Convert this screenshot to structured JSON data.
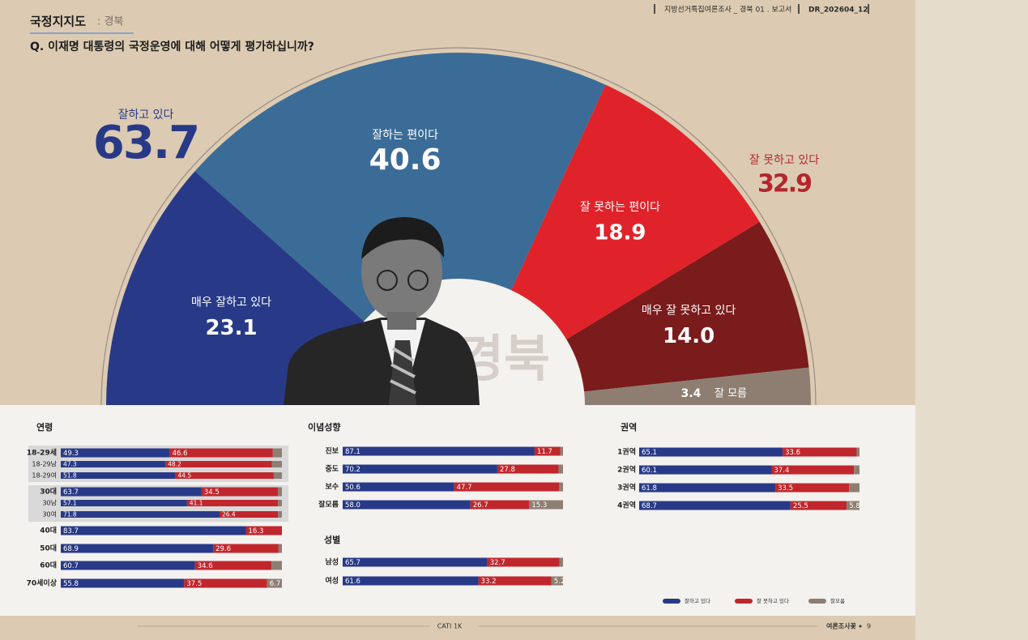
{
  "header": {
    "section_title": "국정지지도",
    "section_sub": ": 경북",
    "question": "Q. 이재명 대통령의 국정운영에 대해 어떻게 평가하십니까?",
    "report": "지방선거특집여론조사 _ 경북 01 . 보고서",
    "doc_id": "DR_202604_12"
  },
  "footer": {
    "method": "CATI 1K",
    "brand": "여론조사꽃",
    "page": "9"
  },
  "chart_data": [
    {
      "type": "pie",
      "categories": [
        "매우 잘하고 있다",
        "잘하는 편이다",
        "잘 못하는 편이다",
        "매우 잘 못하고 있다",
        "잘 모름"
      ],
      "values": [
        23.1,
        40.6,
        18.9,
        14.0,
        3.4
      ],
      "value_labels": [
        "23.1",
        "40.6",
        "18.9",
        "14.0",
        "3.4"
      ],
      "colors": [
        "#283a87",
        "#3b6c97",
        "#e0232a",
        "#7a1b1c",
        "#8e7e72"
      ],
      "groups": [
        {
          "name": "잘하고 있다",
          "value": 63.7,
          "color": "#283a87"
        },
        {
          "name": "잘 못하고 있다",
          "value": 32.9,
          "color": "#b3262d"
        }
      ],
      "watermark": "경북"
    },
    {
      "type": "bar",
      "orientation": "horizontal",
      "stacked": true,
      "title": "연령",
      "categories": [
        "18-29세",
        "18-29남",
        "18-29여",
        "30대",
        "30남",
        "30여",
        "40대",
        "50대",
        "60대",
        "70세이상"
      ],
      "xlim": [
        0,
        100
      ],
      "series": [
        {
          "name": "잘하고 있다",
          "color": "#283a87",
          "values": [
            49.3,
            47.3,
            51.8,
            63.7,
            57.1,
            71.8,
            83.7,
            68.9,
            60.7,
            55.8
          ],
          "value_labels": [
            "49.3",
            "47.3",
            "51.8",
            "63.7",
            "57.1",
            "71.8",
            "83.7",
            "68.9",
            "60.7",
            "55.8"
          ]
        },
        {
          "name": "잘 못하고 있다",
          "color": "#c0272d",
          "values": [
            46.6,
            48.2,
            44.5,
            34.5,
            41.1,
            26.4,
            16.3,
            29.6,
            34.6,
            37.5
          ],
          "value_labels": [
            "46.6",
            "48.2",
            "44.5",
            "34.5",
            "41.1",
            "26.4",
            "16.3",
            "29.6",
            "34.6",
            "37.5"
          ]
        },
        {
          "name": "잘모름",
          "color": "#8e7e72",
          "values": [
            4.1,
            4.5,
            3.7,
            1.8,
            1.8,
            1.8,
            0,
            1.5,
            4.7,
            6.7
          ],
          "value_labels": [
            null,
            null,
            null,
            null,
            null,
            null,
            null,
            null,
            null,
            "6.7"
          ]
        }
      ]
    },
    {
      "type": "bar",
      "orientation": "horizontal",
      "stacked": true,
      "title": "이념성향",
      "categories": [
        "진보",
        "중도",
        "보수",
        "잘모름"
      ],
      "xlim": [
        0,
        100
      ],
      "series": [
        {
          "name": "잘하고 있다",
          "color": "#283a87",
          "values": [
            87.1,
            70.2,
            50.6,
            58.0
          ],
          "value_labels": [
            "87.1",
            "70.2",
            "50.6",
            "58.0"
          ]
        },
        {
          "name": "잘 못하고 있다",
          "color": "#c0272d",
          "values": [
            11.7,
            27.8,
            47.7,
            26.7
          ],
          "value_labels": [
            "11.7",
            "27.8",
            "47.7",
            "26.7"
          ]
        },
        {
          "name": "잘모름",
          "color": "#8e7e72",
          "values": [
            1.2,
            2.0,
            1.7,
            15.3
          ],
          "value_labels": [
            null,
            null,
            null,
            "15.3"
          ]
        }
      ]
    },
    {
      "type": "bar",
      "orientation": "horizontal",
      "stacked": true,
      "title": "성별",
      "categories": [
        "남성",
        "여성"
      ],
      "xlim": [
        0,
        100
      ],
      "series": [
        {
          "name": "잘하고 있다",
          "color": "#283a87",
          "values": [
            65.7,
            61.6
          ],
          "value_labels": [
            "65.7",
            "61.6"
          ]
        },
        {
          "name": "잘 못하고 있다",
          "color": "#c0272d",
          "values": [
            32.7,
            33.2
          ],
          "value_labels": [
            "32.7",
            "33.2"
          ]
        },
        {
          "name": "잘모름",
          "color": "#8e7e72",
          "values": [
            1.6,
            5.2
          ],
          "value_labels": [
            null,
            "5.2"
          ]
        }
      ]
    },
    {
      "type": "bar",
      "orientation": "horizontal",
      "stacked": true,
      "title": "권역",
      "categories": [
        "1권역",
        "2권역",
        "3권역",
        "4권역"
      ],
      "xlim": [
        0,
        100
      ],
      "legend": "bottom",
      "series": [
        {
          "name": "잘하고 있다",
          "color": "#283a87",
          "values": [
            65.1,
            60.1,
            61.8,
            68.7
          ],
          "value_labels": [
            "65.1",
            "60.1",
            "61.8",
            "68.7"
          ]
        },
        {
          "name": "잘 못하고 있다",
          "color": "#c0272d",
          "values": [
            33.6,
            37.4,
            33.5,
            25.5
          ],
          "value_labels": [
            "33.6",
            "37.4",
            "33.5",
            "25.5"
          ]
        },
        {
          "name": "잘모름",
          "color": "#8e7e72",
          "values": [
            1.3,
            2.5,
            4.7,
            5.8
          ],
          "value_labels": [
            null,
            null,
            null,
            "5.8"
          ]
        }
      ]
    }
  ]
}
